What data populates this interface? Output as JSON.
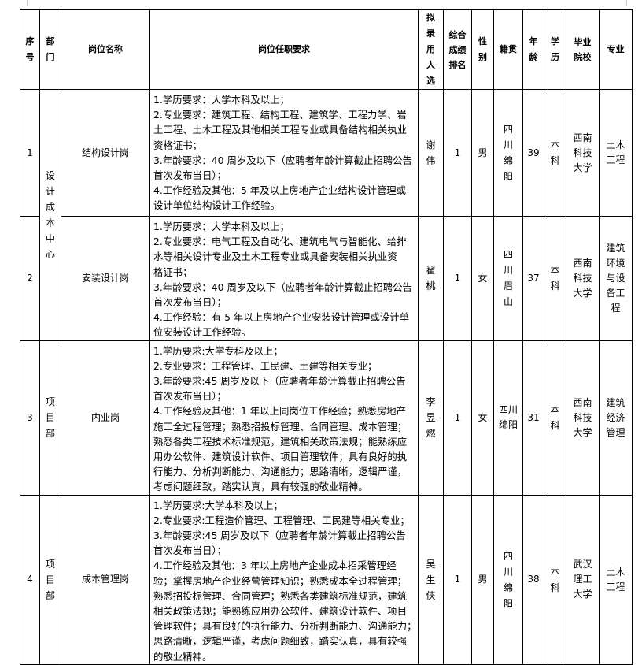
{
  "headers": [
    "序号",
    "部门",
    "岗位名称",
    "岗位任职要求",
    "拟录用人选",
    "综合成绩排名",
    "性别",
    "籍贯",
    "年龄",
    "学历",
    "毕业院校",
    "专业"
  ],
  "rows": [
    {
      "no": "1",
      "dept": "设计成本中心",
      "post": "结构设计岗",
      "req": [
        "1.学历要求：大学本科及以上；",
        "2.专业要求：建筑工程、结构工程、建筑学、工程力学、岩",
        "土工程、土木工程及其他相关工程专业或具备结构相关执业",
        "资格证书；",
        "3.年龄要求：40 周岁及以下（应聘者年龄计算截止招聘公告",
        "首次发布当日）；",
        "4.工作经验及其他：5 年及以上房地产企业结构设计管理或",
        "设计单位结构设计工作经验。"
      ],
      "name": "谢伟",
      "rank": "1",
      "sex": "男",
      "origin": "四川绵阳",
      "age": "39",
      "edu": "本科",
      "school": "西南科技大学",
      "major": "土木工程"
    },
    {
      "no": "2",
      "dept": "",
      "post": "安装设计岗",
      "req": [
        "1.学历要求：大学本科及以上；",
        "2.专业要求：电气工程及自动化、建筑电气与智能化、给排",
        "水等相关设计专业及土木工程专业或具备安装相关执业资",
        "格证书；",
        "3.年龄要求：40 周岁及以下（应聘者年龄计算截止招聘公告",
        "首次发布当日）；",
        "4.工作经验：有 5 年以上房地产企业安装设计管理或设计单",
        "位安装设计工作经验。"
      ],
      "name": "翟桃",
      "rank": "1",
      "sex": "女",
      "origin": "四川眉山",
      "age": "37",
      "edu": "本科",
      "school": "西南科技大学",
      "major": "建筑环境与设备工程"
    },
    {
      "no": "3",
      "dept": "项目部",
      "post": "内业岗",
      "req": [
        "1.学历要求:大学专科及以上；",
        "2.专业要求：工程管理、工民建、土建等相关专业；",
        "3.年龄要求:45 周岁及以下（应聘者年龄计算截止招聘公告",
        "首次发布当日）；",
        "4.工作经验及其他：1 年以上同岗位工作经验；熟悉房地产",
        "施工全过程管理；熟悉招投标管理、合同管理、成本管理；",
        "熟悉各类工程技术标准规范，建筑相关政策法规；能熟练应",
        "用办公软件、建筑设计软件、项目管理软件；具有良好的执",
        "行能力、分析判断能力、沟通能力；思路清晰，逻辑严谨，",
        "考虑问题细致，踏实认真，具有较强的敬业精神。"
      ],
      "name": "李昱燃",
      "rank": "1",
      "sex": "女",
      "origin": "四川绵阳",
      "age": "31",
      "edu": "本科",
      "school": "西南科技大学",
      "major": "建筑经济管理"
    },
    {
      "no": "4",
      "dept": "项目部",
      "post": "成本管理岗",
      "req": [
        "1.学历要求:大学本科及以上；",
        "2.专业要求:工程造价管理、工程管理、工民建等相关专业；",
        "3.年龄要求:45 周岁及以下（应聘者年龄计算截止招聘公告",
        "首次发布当日）；",
        "4.工作经验及其他：3 年以上房地产企业成本招采管理经",
        "验；掌握房地产企业经营管理知识；熟悉成本全过程管理；",
        "熟悉招投标管理、合同管理；熟悉各类建筑标准规范，建筑",
        "相关政策法规；能熟练应用办公软件、建筑设计软件、项目",
        "管理软件；具有良好的执行能力、分析判断能力、沟通能力；",
        "思路清晰，逻辑严谨，考虑问题细致，踏实认真，具有较强",
        "的敬业精神。"
      ],
      "name": "吴生侠",
      "rank": "1",
      "sex": "男",
      "origin": "四川绵阳",
      "age": "38",
      "edu": "本科",
      "school": "武汉理工大学",
      "major": "土木工程"
    }
  ]
}
